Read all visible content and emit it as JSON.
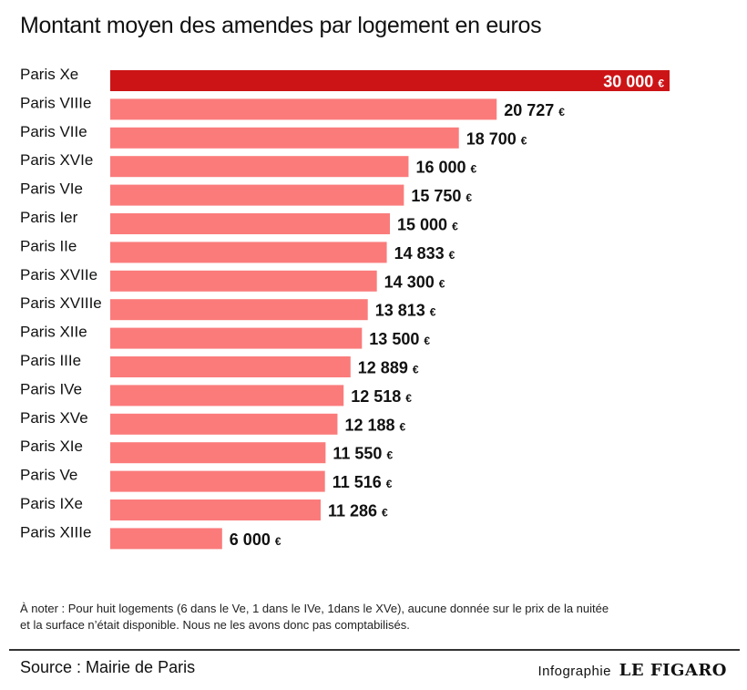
{
  "chart_data": {
    "type": "bar",
    "orientation": "horizontal",
    "title": "Montant moyen des amendes par logement en euros",
    "xlabel": "",
    "ylabel": "",
    "unit": "€",
    "xlim": [
      0,
      30000
    ],
    "grid": false,
    "legend": "none",
    "highlight_category": "Paris Xe",
    "colors": {
      "highlight": "#cc1416",
      "default": "#fb7b7b"
    },
    "categories": [
      "Paris Xe",
      "Paris VIIIe",
      "Paris VIIe",
      "Paris XVIe",
      "Paris VIe",
      "Paris Ier",
      "Paris IIe",
      "Paris XVIIe",
      "Paris XVIIIe",
      "Paris XIIe",
      "Paris IIIe",
      "Paris IVe",
      "Paris XVe",
      "Paris XIe",
      "Paris Ve",
      "Paris IXe",
      "Paris XIIIe"
    ],
    "values": [
      30000,
      20727,
      18700,
      16000,
      15750,
      15000,
      14833,
      14300,
      13813,
      13500,
      12889,
      12518,
      12188,
      11550,
      11516,
      11286,
      6000
    ],
    "value_labels": [
      "30 000",
      "20 727",
      "18 700",
      "16 000",
      "15 750",
      "15 000",
      "14 833",
      "14 300",
      "13 813",
      "13 500",
      "12 889",
      "12 518",
      "12 188",
      "11 550",
      "11 516",
      "11 286",
      "6 000"
    ]
  },
  "note": {
    "line1": "À noter : Pour huit logements (6 dans le Ve, 1 dans le IVe, 1dans le XVe), aucune donnée sur le prix de la nuitée",
    "line2": "et la surface n’était disponible. Nous ne les avons donc pas comptabilisés."
  },
  "footer": {
    "source": "Source : Mairie de Paris",
    "credit_prefix": "Infographie",
    "brand": "LE FIGARO"
  }
}
